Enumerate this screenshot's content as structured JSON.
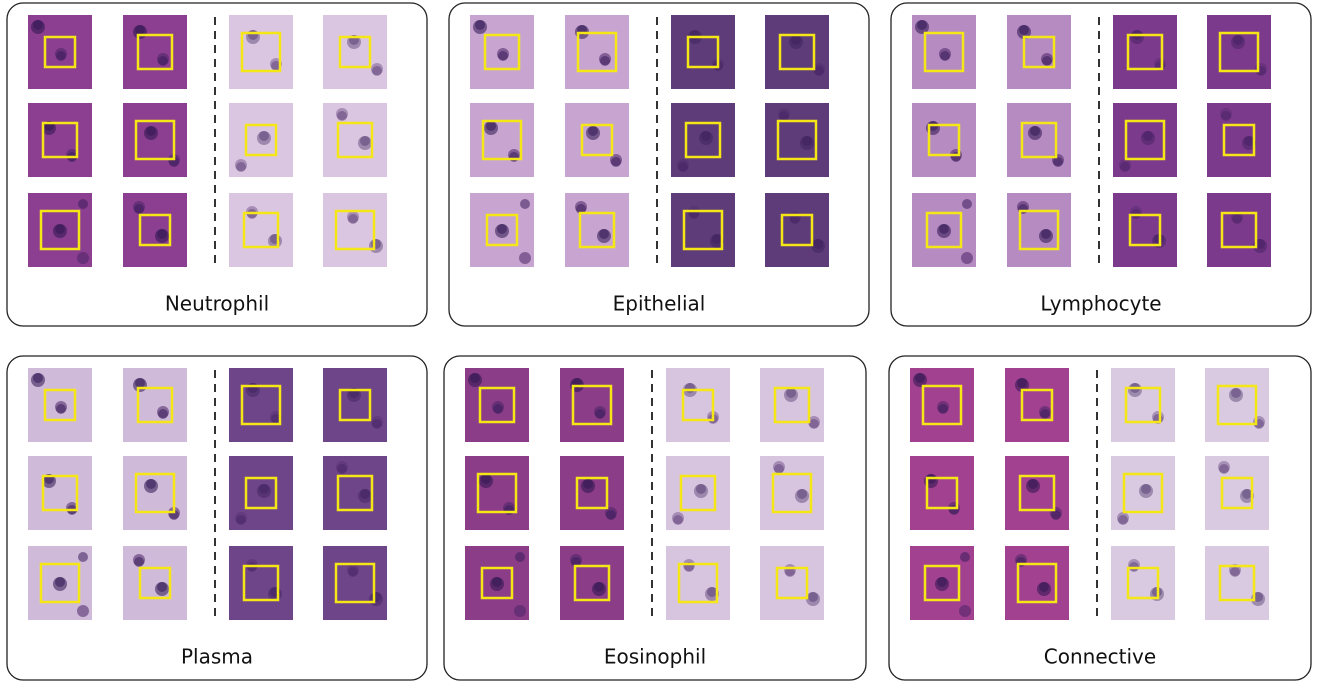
{
  "panels": [
    {
      "label": "Neutrophil"
    },
    {
      "label": "Epithelial"
    },
    {
      "label": "Lymphocyte"
    },
    {
      "label": "Plasma"
    },
    {
      "label": "Eosinophil"
    },
    {
      "label": "Connective"
    }
  ]
}
